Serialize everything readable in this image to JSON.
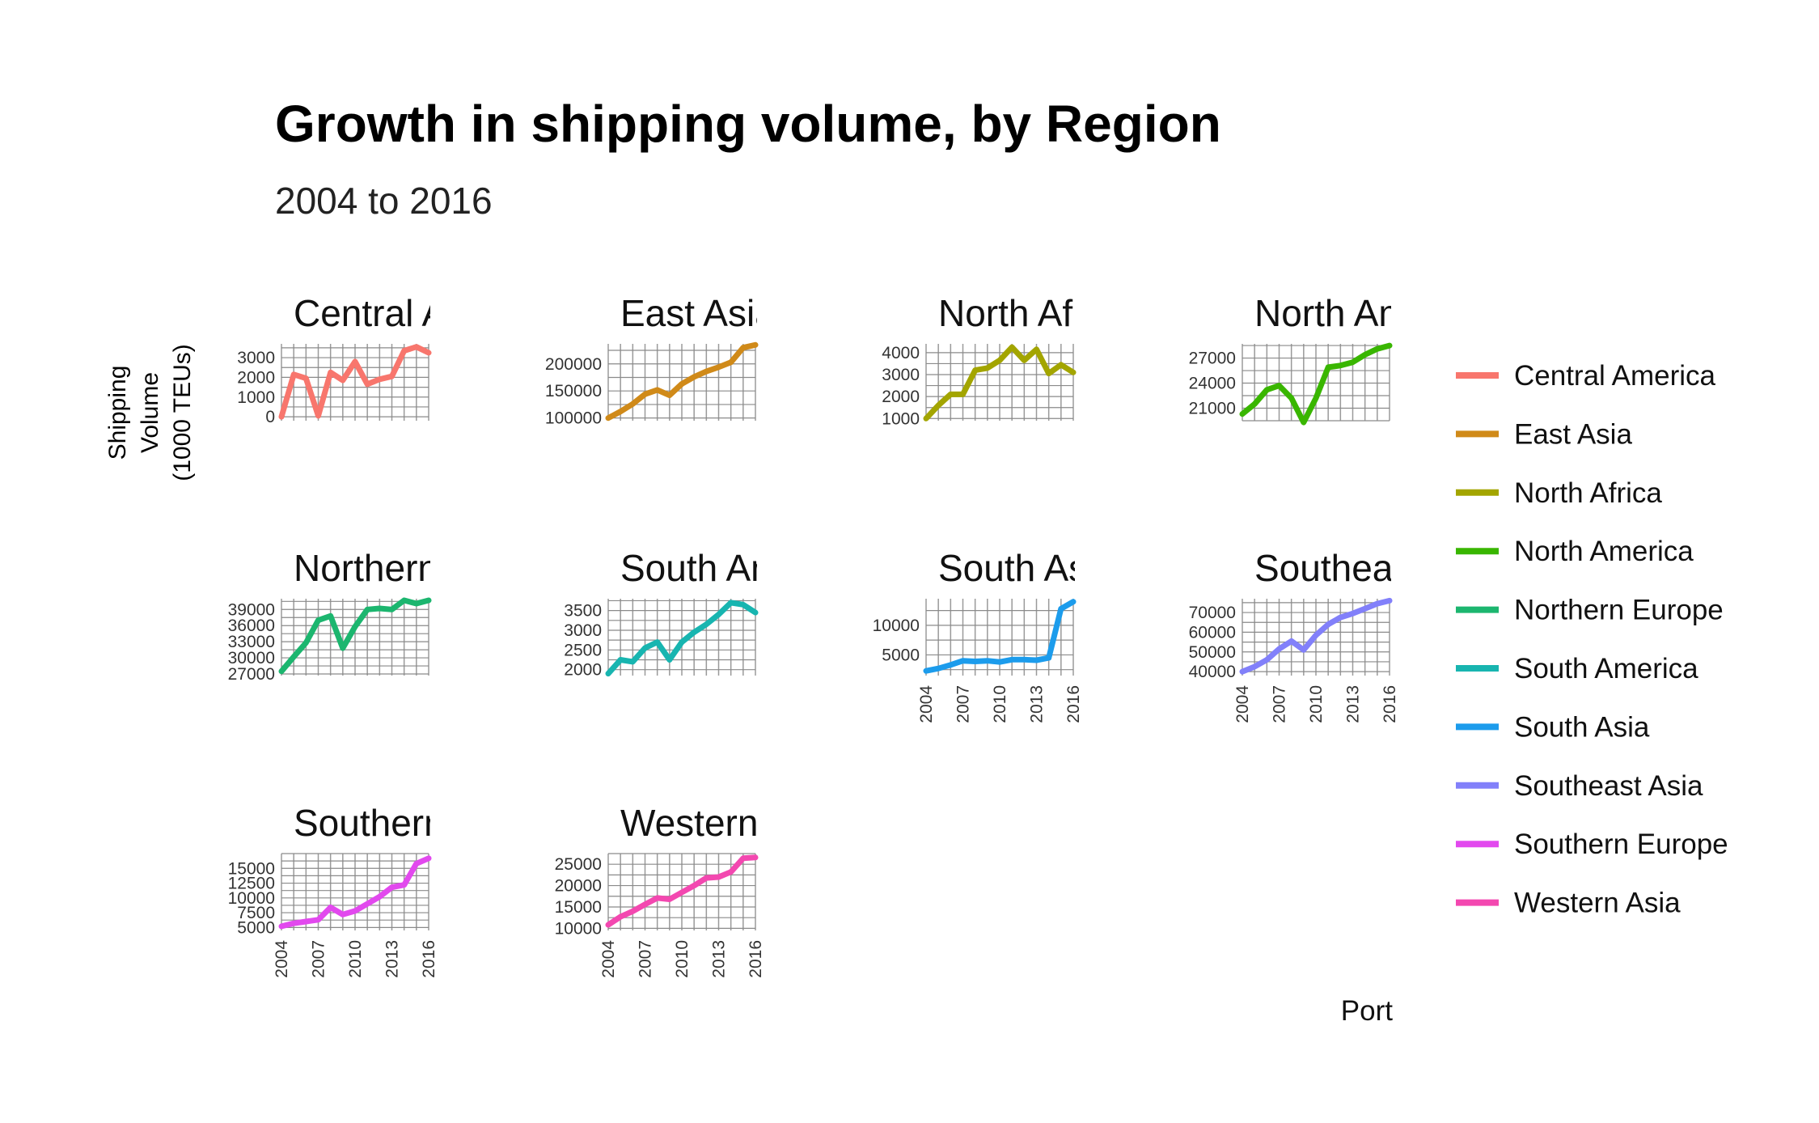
{
  "title": "Growth in shipping volume, by Region",
  "subtitle": "2004 to 2016",
  "ylabel_lines": [
    "Shipping",
    "Volume",
    "(1000 TEUs)"
  ],
  "caption": "Port",
  "chart_data": {
    "type": "line",
    "title": "Growth in shipping volume, by Region",
    "subtitle": "2004 to 2016",
    "ylabel": "Shipping Volume (1000 TEUs)",
    "x": [
      2004,
      2005,
      2006,
      2007,
      2008,
      2009,
      2010,
      2011,
      2012,
      2013,
      2014,
      2015,
      2016
    ],
    "x_tick_labels": [
      "2004",
      "2007",
      "2010",
      "2013",
      "2016"
    ],
    "legend_position": "right",
    "grid": true,
    "panels": [
      {
        "name": "Central America",
        "panel_label": "Central A",
        "color": "#F8766D",
        "ylim": [
          -200,
          3700
        ],
        "y_ticks": [
          "0",
          "1000",
          "2000",
          "3000"
        ],
        "values": [
          0,
          2150,
          1950,
          50,
          2250,
          1850,
          2800,
          1650,
          1900,
          2050,
          3350,
          3550,
          3250
        ]
      },
      {
        "name": "East Asia",
        "panel_label": "East Asia",
        "color": "#D08A19",
        "ylim": [
          95000,
          237000
        ],
        "y_ticks": [
          "100000",
          "150000",
          "200000"
        ],
        "values": [
          100000,
          112000,
          126000,
          144000,
          152000,
          142000,
          163000,
          176000,
          186000,
          194000,
          203000,
          230000,
          235000
        ]
      },
      {
        "name": "North Africa",
        "panel_label": "North Afr",
        "color": "#A3A500",
        "ylim": [
          900,
          4400
        ],
        "y_ticks": [
          "1000",
          "2000",
          "3000",
          "4000"
        ],
        "values": [
          1000,
          1600,
          2100,
          2100,
          3200,
          3300,
          3650,
          4250,
          3650,
          4150,
          3050,
          3450,
          3100
        ]
      },
      {
        "name": "North America",
        "panel_label": "North Am",
        "color": "#39B600",
        "ylim": [
          19500,
          28700
        ],
        "y_ticks": [
          "21000",
          "24000",
          "27000"
        ],
        "values": [
          20300,
          21500,
          23200,
          23700,
          22200,
          19300,
          22200,
          25900,
          26100,
          26500,
          27400,
          28100,
          28500
        ]
      },
      {
        "name": "Northern Europe",
        "panel_label": "Northern",
        "color": "#1CB66F",
        "ylim": [
          26700,
          41000
        ],
        "y_ticks": [
          "27000",
          "30000",
          "33000",
          "36000",
          "39000"
        ],
        "values": [
          27500,
          30200,
          32800,
          37000,
          37800,
          31800,
          35800,
          39000,
          39200,
          39000,
          40700,
          40100,
          40700
        ]
      },
      {
        "name": "South America",
        "panel_label": "South An",
        "color": "#18B5B0",
        "ylim": [
          1850,
          3800
        ],
        "y_ticks": [
          "2000",
          "2500",
          "3000",
          "3500"
        ],
        "values": [
          1900,
          2250,
          2200,
          2550,
          2700,
          2250,
          2700,
          2950,
          3150,
          3400,
          3700,
          3650,
          3450
        ]
      },
      {
        "name": "South Asia",
        "panel_label": "South As",
        "color": "#1C9CEC",
        "ylim": [
          1500,
          14500
        ],
        "y_ticks": [
          "5000",
          "10000"
        ],
        "values": [
          2300,
          2700,
          3300,
          4000,
          3900,
          4000,
          3800,
          4200,
          4200,
          4100,
          4500,
          12800,
          14000
        ]
      },
      {
        "name": "Southeast Asia",
        "panel_label": "Southeas",
        "color": "#8280FA",
        "ylim": [
          38000,
          77000
        ],
        "y_ticks": [
          "40000",
          "50000",
          "60000",
          "70000"
        ],
        "values": [
          40000,
          42500,
          46000,
          51500,
          55500,
          51000,
          58500,
          64000,
          67500,
          69500,
          72000,
          74500,
          76000
        ]
      },
      {
        "name": "Southern Europe",
        "panel_label": "Southern",
        "color": "#E249EE",
        "ylim": [
          4500,
          17500
        ],
        "y_ticks": [
          "5000",
          "7500",
          "10000",
          "12500",
          "15000"
        ],
        "values": [
          5200,
          5700,
          6000,
          6300,
          8400,
          7200,
          7800,
          9000,
          10200,
          11800,
          12200,
          15800,
          16700
        ]
      },
      {
        "name": "Western Asia",
        "panel_label": "Western A",
        "color": "#F348B0",
        "ylim": [
          9500,
          27500
        ],
        "y_ticks": [
          "10000",
          "15000",
          "20000",
          "25000"
        ],
        "values": [
          10800,
          12700,
          14000,
          15600,
          17100,
          16800,
          18400,
          20000,
          21800,
          22000,
          23200,
          26400,
          26600
        ]
      }
    ]
  }
}
